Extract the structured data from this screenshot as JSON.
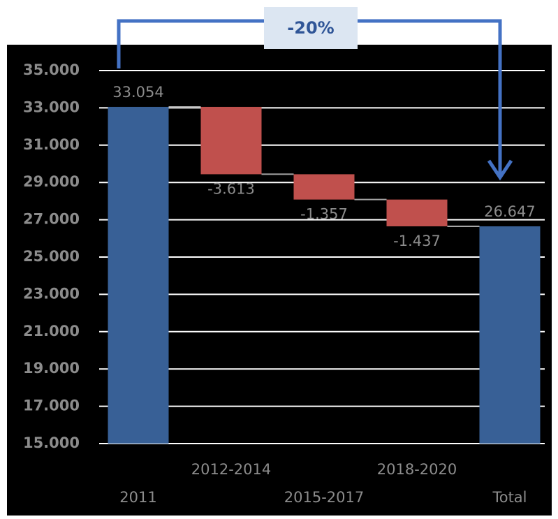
{
  "chart_data": {
    "type": "waterfall",
    "annotation": "-20%",
    "categories": [
      "2011",
      "2012-2014",
      "2015-2017",
      "2018-2020",
      "Total"
    ],
    "values": [
      33054,
      -3613,
      -1357,
      -1437,
      26647
    ],
    "value_labels": [
      "33.054",
      "-3.613",
      "-1.357",
      "-1.437",
      "26.647"
    ],
    "colors": [
      "#386096",
      "#c0504d",
      "#c0504d",
      "#c0504d",
      "#386096"
    ],
    "ylim": [
      15000,
      35000
    ],
    "yticks": [
      {
        "value": 15000,
        "label": "15.000"
      },
      {
        "value": 17000,
        "label": "17.000"
      },
      {
        "value": 19000,
        "label": "19.000"
      },
      {
        "value": 21000,
        "label": "21.000"
      },
      {
        "value": 23000,
        "label": "23.000"
      },
      {
        "value": 25000,
        "label": "25.000"
      },
      {
        "value": 27000,
        "label": "27.000"
      },
      {
        "value": 29000,
        "label": "29.000"
      },
      {
        "value": 31000,
        "label": "31.000"
      },
      {
        "value": 33000,
        "label": "33.000"
      },
      {
        "value": 35000,
        "label": "35.000"
      }
    ],
    "grid": true
  }
}
